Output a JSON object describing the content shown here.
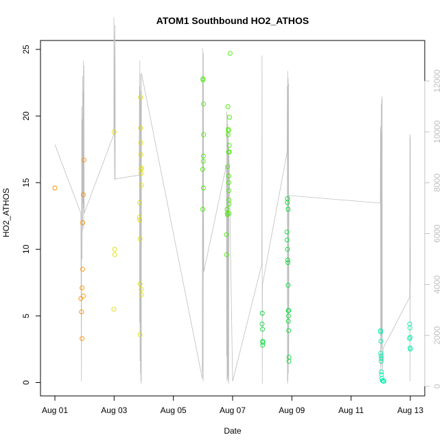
{
  "chart_data": {
    "type": "scatter",
    "title": "ATOM1 Southbound HO2_ATHOS",
    "xlabel": "Date",
    "ylabel": "HO2_ATHOS",
    "ylim": [
      0,
      25
    ],
    "y_ticks": [
      0,
      5,
      10,
      15,
      20,
      25
    ],
    "y2lim": [
      0,
      12000
    ],
    "y2_ticks": [
      0,
      2000,
      4000,
      6000,
      8000,
      10000,
      12000
    ],
    "x_ticks": [
      {
        "date": "2024-08-01",
        "label": "Aug 01"
      },
      {
        "date": "2024-08-03",
        "label": "Aug 03"
      },
      {
        "date": "2024-08-05",
        "label": "Aug 05"
      },
      {
        "date": "2024-08-07",
        "label": "Aug 07"
      },
      {
        "date": "2024-08-09",
        "label": "Aug 09"
      },
      {
        "date": "2024-08-11",
        "label": "Aug 11"
      },
      {
        "date": "2024-08-13",
        "label": "Aug 13"
      }
    ],
    "grid": false,
    "colors": {
      "axis": "#000000",
      "secondary": "#c0c0c0",
      "line": "#bebebe"
    },
    "series": [
      {
        "color": "#ff8c00",
        "points": [
          [
            "2024-08-01T00:00",
            14.6
          ],
          [
            "2024-08-01T21:00",
            6.3
          ],
          [
            "2024-08-01T21:30",
            5.3
          ],
          [
            "2024-08-01T22:00",
            3.3
          ],
          [
            "2024-08-01T22:00",
            7.1
          ],
          [
            "2024-08-01T22:30",
            8.5
          ],
          [
            "2024-08-01T22:30",
            12.0
          ],
          [
            "2024-08-01T23:00",
            6.5
          ],
          [
            "2024-08-01T23:00",
            14.1
          ],
          [
            "2024-08-01T23:30",
            16.7
          ]
        ]
      },
      {
        "color": "#dddd00",
        "points": [
          [
            "2024-08-02T23:45",
            5.5
          ],
          [
            "2024-08-03T00:00",
            18.8
          ],
          [
            "2024-08-03T00:30",
            10.0
          ],
          [
            "2024-08-03T00:30",
            9.6
          ],
          [
            "2024-08-03T20:30",
            12.4
          ],
          [
            "2024-08-03T20:40",
            13.5
          ],
          [
            "2024-08-03T20:50",
            12.2
          ],
          [
            "2024-08-03T21:00",
            7.4
          ],
          [
            "2024-08-03T21:00",
            10.8
          ],
          [
            "2024-08-03T21:00",
            3.6
          ],
          [
            "2024-08-03T21:20",
            21.4
          ],
          [
            "2024-08-03T21:30",
            19.1
          ],
          [
            "2024-08-03T21:40",
            18.0
          ],
          [
            "2024-08-03T21:40",
            17.1
          ],
          [
            "2024-08-03T21:50",
            16.0
          ],
          [
            "2024-08-03T21:50",
            15.7
          ],
          [
            "2024-08-03T22:00",
            16.1
          ],
          [
            "2024-08-03T22:00",
            14.8
          ],
          [
            "2024-08-03T22:00",
            7.0
          ],
          [
            "2024-08-03T22:10",
            6.6
          ]
        ]
      },
      {
        "color": "#44ee00",
        "points": [
          [
            "2024-08-05T23:40",
            16.0
          ],
          [
            "2024-08-05T23:50",
            13.0
          ],
          [
            "2024-08-06T00:00",
            22.8
          ],
          [
            "2024-08-06T00:00",
            22.7
          ],
          [
            "2024-08-06T00:10",
            16.6
          ],
          [
            "2024-08-06T00:20",
            17.0
          ],
          [
            "2024-08-06T00:20",
            14.6
          ],
          [
            "2024-08-06T00:30",
            20.9
          ],
          [
            "2024-08-06T00:30",
            18.6
          ],
          [
            "2024-08-06T19:00",
            11.1
          ],
          [
            "2024-08-06T19:10",
            9.6
          ],
          [
            "2024-08-06T19:30",
            13.0
          ],
          [
            "2024-08-06T19:40",
            12.7
          ],
          [
            "2024-08-06T19:50",
            12.6
          ],
          [
            "2024-08-06T20:00",
            16.2
          ],
          [
            "2024-08-06T20:10",
            20.7
          ],
          [
            "2024-08-06T20:20",
            18.6
          ],
          [
            "2024-08-06T20:30",
            19.0
          ],
          [
            "2024-08-06T20:40",
            18.9
          ],
          [
            "2024-08-06T20:40",
            17.3
          ],
          [
            "2024-08-06T20:50",
            15.5
          ],
          [
            "2024-08-06T20:50",
            15.0
          ],
          [
            "2024-08-06T21:00",
            14.4
          ],
          [
            "2024-08-06T21:00",
            13.7
          ],
          [
            "2024-08-06T21:10",
            13.4
          ],
          [
            "2024-08-06T21:10",
            12.7
          ],
          [
            "2024-08-06T21:20",
            17.8
          ],
          [
            "2024-08-06T21:20",
            17.3
          ],
          [
            "2024-08-06T21:30",
            19.9
          ],
          [
            "2024-08-06T22:00",
            24.7
          ]
        ]
      },
      {
        "color": "#00dd33",
        "points": [
          [
            "2024-08-08T00:00",
            5.2
          ],
          [
            "2024-08-07T23:50",
            4.4
          ],
          [
            "2024-08-08T00:10",
            4.0
          ],
          [
            "2024-08-08T00:20",
            3.1
          ],
          [
            "2024-08-08T00:20",
            2.8
          ],
          [
            "2024-08-08T00:30",
            3.0
          ],
          [
            "2024-08-08T20:00",
            11.3
          ],
          [
            "2024-08-08T20:10",
            10.7
          ],
          [
            "2024-08-08T20:20",
            13.5
          ],
          [
            "2024-08-08T20:30",
            13.8
          ],
          [
            "2024-08-08T20:30",
            10.0
          ],
          [
            "2024-08-08T20:40",
            9.2
          ],
          [
            "2024-08-08T20:50",
            9.0
          ],
          [
            "2024-08-08T21:00",
            13.0
          ],
          [
            "2024-08-08T21:00",
            7.3
          ],
          [
            "2024-08-08T21:10",
            5.4
          ],
          [
            "2024-08-08T21:10",
            4.6
          ],
          [
            "2024-08-08T21:20",
            5.0
          ],
          [
            "2024-08-08T21:30",
            5.4
          ],
          [
            "2024-08-08T21:30",
            3.9
          ],
          [
            "2024-08-08T21:40",
            1.9
          ],
          [
            "2024-08-08T21:40",
            1.6
          ]
        ]
      },
      {
        "color": "#00eeaa",
        "points": [
          [
            "2024-08-11T23:50",
            3.9
          ],
          [
            "2024-08-12T00:00",
            3.8
          ],
          [
            "2024-08-12T00:00",
            2.2
          ],
          [
            "2024-08-12T00:10",
            3.1
          ],
          [
            "2024-08-12T00:20",
            2.0
          ],
          [
            "2024-08-12T00:20",
            1.6
          ],
          [
            "2024-08-12T00:30",
            1.8
          ],
          [
            "2024-08-12T00:30",
            0.8
          ],
          [
            "2024-08-12T00:40",
            0.6
          ],
          [
            "2024-08-12T01:00",
            0.3
          ],
          [
            "2024-08-12T01:20",
            0.15
          ],
          [
            "2024-08-12T02:00",
            0.1
          ],
          [
            "2024-08-12T02:40",
            0.1
          ],
          [
            "2024-08-12T23:20",
            3.3
          ],
          [
            "2024-08-12T23:30",
            4.4
          ],
          [
            "2024-08-12T23:40",
            4.1
          ],
          [
            "2024-08-12T23:50",
            3.4
          ],
          [
            "2024-08-12T23:50",
            2.6
          ],
          [
            "2024-08-13T00:00",
            2.5
          ]
        ]
      }
    ],
    "secondary_series": {
      "color": "#bebebe",
      "axis": "right",
      "points": [
        [
          "2024-08-01T00:00",
          9500
        ],
        [
          "2024-08-01T21:00",
          6800
        ],
        [
          "2024-08-01T21:30",
          200
        ],
        [
          "2024-08-01T21:45",
          11000
        ],
        [
          "2024-08-01T22:00",
          5000
        ],
        [
          "2024-08-01T22:10",
          10500
        ],
        [
          "2024-08-01T22:20",
          6100
        ],
        [
          "2024-08-01T22:30",
          12200
        ],
        [
          "2024-08-01T22:40",
          7200
        ],
        [
          "2024-08-01T22:50",
          11600
        ],
        [
          "2024-08-01T23:00",
          7000
        ],
        [
          "2024-08-01T23:10",
          12800
        ],
        [
          "2024-08-01T23:20",
          6200
        ],
        [
          "2024-08-01T23:30",
          12600
        ],
        [
          "2024-08-01T23:45",
          6800
        ],
        [
          "2024-08-02T23:45",
          9900
        ],
        [
          "2024-08-02T23:50",
          14500
        ],
        [
          "2024-08-03T00:00",
          13300
        ],
        [
          "2024-08-03T00:10",
          10300
        ],
        [
          "2024-08-03T00:20",
          8100
        ],
        [
          "2024-08-03T00:40",
          14200
        ],
        [
          "2024-08-03T00:50",
          12600
        ],
        [
          "2024-08-03T01:00",
          8150
        ],
        [
          "2024-08-03T20:20",
          8300
        ],
        [
          "2024-08-03T20:30",
          11800
        ],
        [
          "2024-08-03T20:40",
          2500
        ],
        [
          "2024-08-03T20:50",
          12800
        ],
        [
          "2024-08-03T21:00",
          1000
        ],
        [
          "2024-08-03T21:10",
          12300
        ],
        [
          "2024-08-03T21:20",
          500
        ],
        [
          "2024-08-03T21:30",
          11600
        ],
        [
          "2024-08-03T21:40",
          200
        ],
        [
          "2024-08-03T21:50",
          11300
        ],
        [
          "2024-08-03T22:00",
          100
        ],
        [
          "2024-08-03T22:10",
          12300
        ],
        [
          "2024-08-05T23:30",
          300
        ],
        [
          "2024-08-05T23:40",
          13300
        ],
        [
          "2024-08-05T23:50",
          600
        ],
        [
          "2024-08-06T00:00",
          12200
        ],
        [
          "2024-08-06T00:10",
          200
        ],
        [
          "2024-08-06T00:20",
          13100
        ],
        [
          "2024-08-06T00:30",
          7000
        ],
        [
          "2024-08-06T00:40",
          4500
        ],
        [
          "2024-08-06T19:00",
          8700
        ],
        [
          "2024-08-06T19:10",
          1200
        ],
        [
          "2024-08-06T19:20",
          10800
        ],
        [
          "2024-08-06T19:30",
          200
        ],
        [
          "2024-08-06T19:40",
          10700
        ],
        [
          "2024-08-06T19:50",
          300
        ],
        [
          "2024-08-06T20:00",
          10300
        ],
        [
          "2024-08-06T20:10",
          400
        ],
        [
          "2024-08-06T20:20",
          9600
        ],
        [
          "2024-08-06T20:30",
          200
        ],
        [
          "2024-08-06T20:40",
          10000
        ],
        [
          "2024-08-06T20:50",
          100
        ],
        [
          "2024-08-06T21:00",
          9400
        ],
        [
          "2024-08-07T00:00",
          200
        ],
        [
          "2024-08-07T23:40",
          4800
        ],
        [
          "2024-08-07T23:50",
          13000
        ],
        [
          "2024-08-08T00:00",
          100
        ],
        [
          "2024-08-08T00:10",
          4000
        ],
        [
          "2024-08-08T20:10",
          9200
        ],
        [
          "2024-08-08T20:20",
          11800
        ],
        [
          "2024-08-08T20:30",
          100
        ],
        [
          "2024-08-08T20:40",
          12400
        ],
        [
          "2024-08-08T20:50",
          200
        ],
        [
          "2024-08-08T21:00",
          12100
        ],
        [
          "2024-08-08T21:10",
          500
        ],
        [
          "2024-08-08T21:20",
          11900
        ],
        [
          "2024-08-08T21:30",
          1000
        ],
        [
          "2024-08-08T21:40",
          7500
        ],
        [
          "2024-08-11T23:40",
          7200
        ],
        [
          "2024-08-11T23:50",
          10200
        ],
        [
          "2024-08-12T00:00",
          500
        ],
        [
          "2024-08-12T00:10",
          10000
        ],
        [
          "2024-08-12T00:20",
          800
        ],
        [
          "2024-08-12T00:30",
          11100
        ],
        [
          "2024-08-12T00:40",
          2000
        ],
        [
          "2024-08-12T00:50",
          11300
        ],
        [
          "2024-08-12T01:00",
          1500
        ],
        [
          "2024-08-12T01:10",
          11400
        ],
        [
          "2024-08-12T01:20",
          600
        ],
        [
          "2024-08-12T02:00",
          1500
        ],
        [
          "2024-08-12T23:30",
          3500
        ],
        [
          "2024-08-12T23:40",
          9900
        ],
        [
          "2024-08-12T23:50",
          200
        ],
        [
          "2024-08-13T00:00",
          9800
        ],
        [
          "2024-08-13T00:05",
          4000
        ]
      ]
    }
  }
}
